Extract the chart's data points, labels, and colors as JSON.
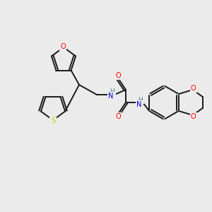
{
  "bg_color": "#ebebeb",
  "bond_color": "#1a1a1a",
  "atom_colors": {
    "O": "#ff0000",
    "N": "#0000cd",
    "S": "#cccc00",
    "H": "#4a8a8a",
    "C": "#1a1a1a"
  },
  "figsize": [
    3.0,
    3.0
  ],
  "dpi": 100
}
